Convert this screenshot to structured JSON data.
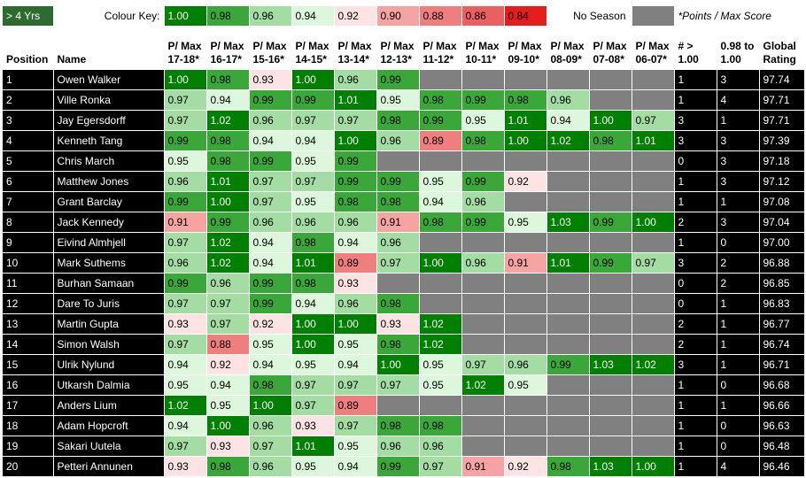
{
  "key_row": {
    "years_label": "> 4 Yrs",
    "colour_key_label": "Colour Key:",
    "scale": [
      {
        "text": "1.00",
        "color": "#008000"
      },
      {
        "text": "0.98",
        "color": "#39a839"
      },
      {
        "text": "0.96",
        "color": "#a4dda4"
      },
      {
        "text": "0.94",
        "color": "#ddf7dd"
      },
      {
        "text": "0.92",
        "color": "#fde3e3"
      },
      {
        "text": "0.90",
        "color": "#f5a3a3"
      },
      {
        "text": "0.88",
        "color": "#ef7f7f"
      },
      {
        "text": "0.86",
        "color": "#ea5f5f"
      },
      {
        "text": "0.84",
        "color": "#e61d1d"
      }
    ],
    "no_season_label": "No Season",
    "no_season_color": "#808080",
    "note": "*Points / Max Score"
  },
  "headers": {
    "position": "Position",
    "name": "Name",
    "seasons": [
      "P/ Max 17-18*",
      "P/ Max 16-17*",
      "P/ Max 15-16*",
      "P/ Max 14-15*",
      "P/ Max 13-14*",
      "P/ Max 12-13*",
      "P/ Max 11-12*",
      "P/ Max 10-11*",
      "P/ Max 09-10*",
      "P/ Max 08-09*",
      "P/ Max 07-08*",
      "P/ Max 06-07*"
    ],
    "gt100": "# > 1.00",
    "r098": "0.98 to 1.00",
    "global": "Global Rating"
  },
  "rows": [
    {
      "pos": "1",
      "name": "Owen Walker",
      "scores": [
        "1.00",
        "0.98",
        "0.93",
        "1.00",
        "0.96",
        "0.99",
        null,
        null,
        null,
        null,
        null,
        null
      ],
      "gt100": "1",
      "r098": "3",
      "global": "97.74"
    },
    {
      "pos": "2",
      "name": "Ville Ronka",
      "scores": [
        "0.97",
        "0.94",
        "0.99",
        "0.99",
        "1.01",
        "0.95",
        "0.98",
        "0.99",
        "0.98",
        "0.96",
        null,
        null
      ],
      "gt100": "1",
      "r098": "4",
      "global": "97.71"
    },
    {
      "pos": "3",
      "name": "Jay Egersdorff",
      "scores": [
        "0.97",
        "1.02",
        "0.96",
        "0.97",
        "0.97",
        "0.98",
        "0.99",
        "0.95",
        "1.01",
        "0.94",
        "1.00",
        "0.97"
      ],
      "gt100": "3",
      "r098": "1",
      "global": "97.71"
    },
    {
      "pos": "4",
      "name": "Kenneth Tang",
      "scores": [
        "0.99",
        "0.98",
        "0.94",
        "0.94",
        "1.00",
        "0.96",
        "0.89",
        "0.98",
        "1.00",
        "1.02",
        "0.98",
        "1.01"
      ],
      "gt100": "3",
      "r098": "3",
      "global": "97.39"
    },
    {
      "pos": "5",
      "name": "Chris March",
      "scores": [
        "0.95",
        "0.98",
        "0.99",
        "0.95",
        "0.99",
        null,
        null,
        null,
        null,
        null,
        null,
        null
      ],
      "gt100": "0",
      "r098": "3",
      "global": "97.18"
    },
    {
      "pos": "6",
      "name": "Matthew Jones",
      "scores": [
        "0.96",
        "1.01",
        "0.97",
        "0.97",
        "0.99",
        "0.99",
        "0.95",
        "0.99",
        "0.92",
        null,
        null,
        null
      ],
      "gt100": "1",
      "r098": "3",
      "global": "97.12"
    },
    {
      "pos": "7",
      "name": "Grant Barclay",
      "scores": [
        "0.99",
        "1.00",
        "0.97",
        "0.95",
        "0.98",
        "0.98",
        "0.94",
        "0.96",
        null,
        null,
        null,
        null
      ],
      "gt100": "1",
      "r098": "1",
      "global": "97.08"
    },
    {
      "pos": "8",
      "name": "Jack Kennedy",
      "scores": [
        "0.91",
        "0.99",
        "0.96",
        "0.96",
        "0.96",
        "0.91",
        "0.98",
        "0.99",
        "0.95",
        "1.03",
        "0.99",
        "1.00"
      ],
      "gt100": "2",
      "r098": "3",
      "global": "97.04"
    },
    {
      "pos": "9",
      "name": "Eivind Almhjell",
      "scores": [
        "0.97",
        "1.02",
        "0.94",
        "0.98",
        "0.94",
        "0.96",
        null,
        null,
        null,
        null,
        null,
        null
      ],
      "gt100": "1",
      "r098": "0",
      "global": "97.00"
    },
    {
      "pos": "10",
      "name": "Mark Suthems",
      "scores": [
        "0.96",
        "1.02",
        "0.94",
        "1.01",
        "0.89",
        "0.97",
        "1.00",
        "0.96",
        "0.91",
        "1.01",
        "0.99",
        "0.97"
      ],
      "gt100": "3",
      "r098": "2",
      "global": "96.88"
    },
    {
      "pos": "11",
      "name": "Burhan Samaan",
      "scores": [
        "0.99",
        "0.96",
        "0.99",
        "0.98",
        "0.93",
        null,
        null,
        null,
        null,
        null,
        null,
        null
      ],
      "gt100": "0",
      "r098": "2",
      "global": "96.85"
    },
    {
      "pos": "12",
      "name": "Dare To Juris",
      "scores": [
        "0.97",
        "0.97",
        "0.99",
        "0.94",
        "0.96",
        "0.98",
        null,
        null,
        null,
        null,
        null,
        null
      ],
      "gt100": "0",
      "r098": "1",
      "global": "96.83"
    },
    {
      "pos": "13",
      "name": "Martin Gupta",
      "scores": [
        "0.93",
        "0.97",
        "0.92",
        "1.00",
        "1.00",
        "0.93",
        "1.02",
        null,
        null,
        null,
        null,
        null
      ],
      "gt100": "2",
      "r098": "1",
      "global": "96.77"
    },
    {
      "pos": "14",
      "name": "Simon Walsh",
      "scores": [
        "0.97",
        "0.88",
        "0.95",
        "1.00",
        "0.95",
        "0.98",
        "1.02",
        null,
        null,
        null,
        null,
        null
      ],
      "gt100": "2",
      "r098": "1",
      "global": "96.74"
    },
    {
      "pos": "15",
      "name": "Ulrik Nylund",
      "scores": [
        "0.94",
        "0.92",
        "0.94",
        "0.95",
        "0.94",
        "1.00",
        "0.95",
        "0.97",
        "0.96",
        "0.99",
        "1.03",
        "1.02"
      ],
      "gt100": "3",
      "r098": "1",
      "global": "96.71"
    },
    {
      "pos": "16",
      "name": "Utkarsh Dalmia",
      "scores": [
        "0.95",
        "0.94",
        "0.98",
        "0.97",
        "0.97",
        "0.97",
        "0.95",
        "1.02",
        "0.95",
        null,
        null,
        null
      ],
      "gt100": "1",
      "r098": "0",
      "global": "96.68"
    },
    {
      "pos": "17",
      "name": "Anders Lium",
      "scores": [
        "1.02",
        "0.95",
        "1.00",
        "0.97",
        "0.89",
        null,
        null,
        null,
        null,
        null,
        null,
        null
      ],
      "gt100": "1",
      "r098": "1",
      "global": "96.66"
    },
    {
      "pos": "18",
      "name": "Adam Hopcroft",
      "scores": [
        "0.94",
        "1.00",
        "0.96",
        "0.93",
        "0.97",
        "0.98",
        "0.98",
        null,
        null,
        null,
        null,
        null
      ],
      "gt100": "1",
      "r098": "0",
      "global": "96.63"
    },
    {
      "pos": "19",
      "name": "Sakari Uutela",
      "scores": [
        "0.97",
        "0.93",
        "0.97",
        "1.01",
        "0.95",
        "0.96",
        "0.96",
        null,
        null,
        null,
        null,
        null
      ],
      "gt100": "1",
      "r098": "0",
      "global": "96.48"
    },
    {
      "pos": "20",
      "name": "Petteri Annunen",
      "scores": [
        "0.93",
        "0.98",
        "0.96",
        "0.95",
        "0.94",
        "0.99",
        "0.97",
        "0.91",
        "0.92",
        "0.98",
        "1.03",
        "1.00"
      ],
      "gt100": "1",
      "r098": "4",
      "global": "96.46"
    }
  ]
}
